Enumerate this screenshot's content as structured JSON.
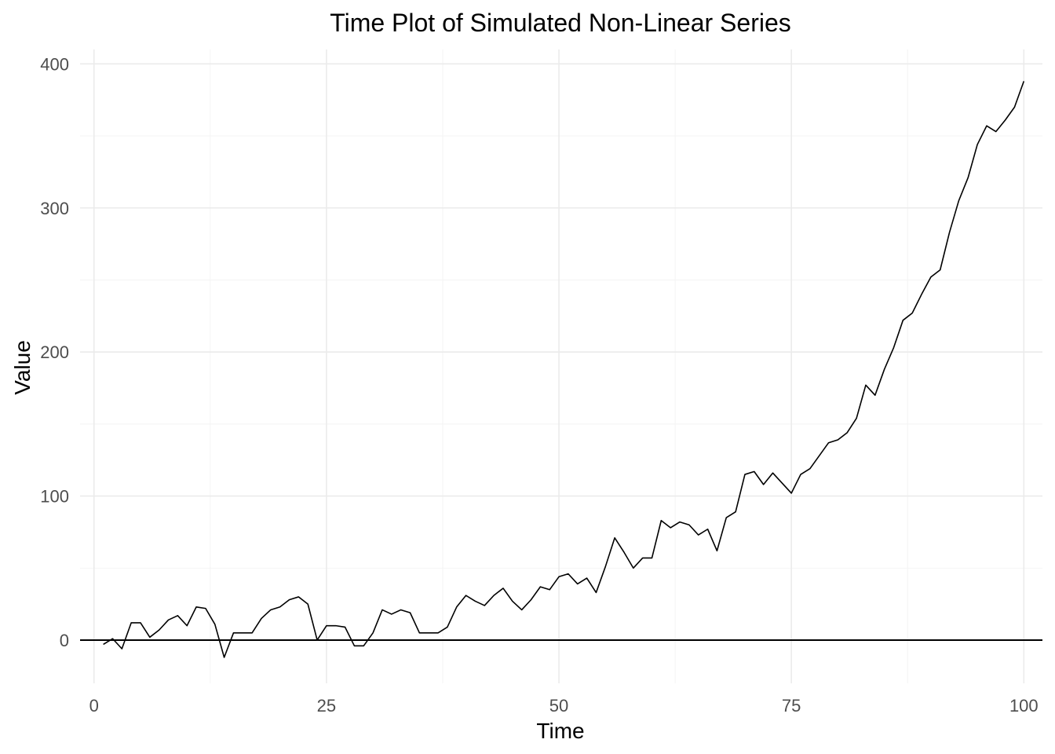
{
  "chart_data": {
    "type": "line",
    "title": "Time Plot of Simulated Non-Linear Series",
    "xlabel": "Time",
    "ylabel": "Value",
    "xlim": [
      -1.5,
      102
    ],
    "ylim": [
      -30,
      410
    ],
    "x_ticks": [
      0,
      25,
      50,
      75,
      100
    ],
    "y_ticks": [
      0,
      100,
      200,
      300,
      400
    ],
    "grid": true,
    "hline": 0,
    "series": [
      {
        "x": [
          1,
          2,
          3,
          4,
          5,
          6,
          7,
          8,
          9,
          10,
          11,
          12,
          13,
          14,
          15,
          16,
          17,
          18,
          19,
          20,
          21,
          22,
          23,
          24,
          25,
          26,
          27,
          28,
          29,
          30,
          31,
          32,
          33,
          34,
          35,
          36,
          37,
          38,
          39,
          40,
          41,
          42,
          43,
          44,
          45,
          46,
          47,
          48,
          49,
          50,
          51,
          52,
          53,
          54,
          55,
          56,
          57,
          58,
          59,
          60,
          61,
          62,
          63,
          64,
          65,
          66,
          67,
          68,
          69,
          70,
          71,
          72,
          73,
          74,
          75,
          76,
          77,
          78,
          79,
          80,
          81,
          82,
          83,
          84,
          85,
          86,
          87,
          88,
          89,
          90,
          91,
          92,
          93,
          94,
          95,
          96,
          97,
          98,
          99,
          100
        ],
        "values": [
          -3,
          1,
          -6,
          12,
          12,
          2,
          7,
          14,
          17,
          10,
          23,
          22,
          11,
          -12,
          5,
          5,
          5,
          15,
          21,
          23,
          28,
          30,
          25,
          0,
          10,
          10,
          9,
          -4,
          -4,
          5,
          21,
          18,
          21,
          19,
          5,
          5,
          5,
          9,
          23,
          31,
          27,
          24,
          31,
          36,
          27,
          21,
          28,
          37,
          35,
          44,
          46,
          39,
          43,
          33,
          51,
          71,
          61,
          50,
          57,
          57,
          83,
          78,
          82,
          80,
          73,
          77,
          62,
          85,
          89,
          115,
          117,
          108,
          116,
          109,
          102,
          115,
          119,
          128,
          137,
          139,
          144,
          154,
          177,
          170,
          188,
          203,
          222,
          227,
          240,
          252,
          257,
          283,
          305,
          321,
          344,
          357,
          353,
          361,
          370,
          388
        ]
      }
    ]
  }
}
